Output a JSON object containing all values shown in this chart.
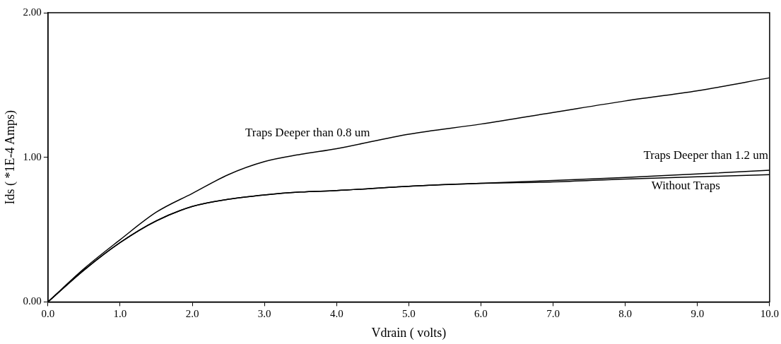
{
  "chart_data": {
    "type": "line",
    "xlabel": "Vdrain ( volts)",
    "ylabel": "Ids ( *1E-4 Amps)",
    "x": [
      0,
      0.5,
      1,
      1.5,
      2,
      2.5,
      3,
      3.5,
      4,
      5,
      6,
      7,
      8,
      9,
      10
    ],
    "series": [
      {
        "name": "Traps Deeper than 0.8 um",
        "color": "#000000",
        "values": [
          0,
          0.23,
          0.43,
          0.62,
          0.75,
          0.88,
          0.97,
          1.02,
          1.06,
          1.16,
          1.23,
          1.31,
          1.39,
          1.46,
          1.55
        ]
      },
      {
        "name": "Traps Deeper than 1.2 um",
        "color": "#000000",
        "values": [
          0,
          0.22,
          0.41,
          0.56,
          0.66,
          0.71,
          0.74,
          0.76,
          0.77,
          0.8,
          0.82,
          0.84,
          0.86,
          0.885,
          0.91
        ]
      },
      {
        "name": "Without Traps",
        "color": "#000000",
        "values": [
          0,
          0.22,
          0.41,
          0.56,
          0.66,
          0.71,
          0.74,
          0.76,
          0.77,
          0.8,
          0.82,
          0.83,
          0.85,
          0.865,
          0.88
        ]
      }
    ],
    "xlim": [
      0,
      10
    ],
    "xticks": [
      {
        "value": 0,
        "label": "0.0"
      },
      {
        "value": 1,
        "label": "1.0"
      },
      {
        "value": 2,
        "label": "2.0"
      },
      {
        "value": 3,
        "label": "3.0"
      },
      {
        "value": 4,
        "label": "4.0"
      },
      {
        "value": 5,
        "label": "5.0"
      },
      {
        "value": 6,
        "label": "6.0"
      },
      {
        "value": 7,
        "label": "7.0"
      },
      {
        "value": 8,
        "label": "8.0"
      },
      {
        "value": 9,
        "label": "9.0"
      },
      {
        "value": 10,
        "label": "10.0"
      }
    ],
    "ylim": [
      0,
      2
    ],
    "yticks": [
      {
        "value": 0,
        "label": "0.00"
      },
      {
        "value": 1,
        "label": "1.00"
      },
      {
        "value": 2,
        "label": "2.00"
      }
    ],
    "grid": false,
    "legend": false,
    "marker": "none",
    "line_style": "solid"
  }
}
